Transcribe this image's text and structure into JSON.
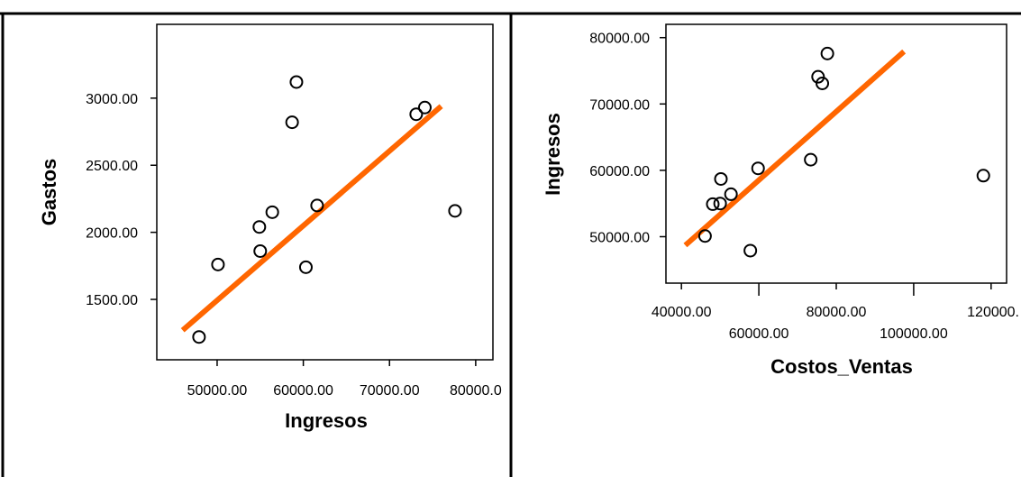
{
  "colors": {
    "fit_line": "#ff6600",
    "marker": "#000000",
    "frame": "#000000"
  },
  "chart_data": [
    {
      "type": "scatter",
      "title": "",
      "xlabel": "Ingresos",
      "ylabel": "Gastos",
      "xlim": [
        43000,
        82000
      ],
      "ylim": [
        1050,
        3550
      ],
      "x_ticks": [
        "50000.00",
        "60000.00",
        "70000.00",
        "80000.0"
      ],
      "y_ticks": [
        "1500.00",
        "2000.00",
        "2500.00",
        "3000.00"
      ],
      "x_tick_values": [
        50000,
        60000,
        70000,
        80000
      ],
      "y_tick_values": [
        1500,
        2000,
        2500,
        3000
      ],
      "grid": false,
      "points": [
        {
          "x": 47900,
          "y": 1220
        },
        {
          "x": 50100,
          "y": 1760
        },
        {
          "x": 54900,
          "y": 2040
        },
        {
          "x": 55000,
          "y": 1860
        },
        {
          "x": 56400,
          "y": 2150
        },
        {
          "x": 58700,
          "y": 2820
        },
        {
          "x": 59200,
          "y": 3120
        },
        {
          "x": 60300,
          "y": 1740
        },
        {
          "x": 61600,
          "y": 2200
        },
        {
          "x": 73100,
          "y": 2880
        },
        {
          "x": 74100,
          "y": 2930
        },
        {
          "x": 77600,
          "y": 2160
        }
      ],
      "fit_line": {
        "x": [
          46000,
          76000
        ],
        "y": [
          1270,
          2940
        ]
      }
    },
    {
      "type": "scatter",
      "title": "",
      "xlabel": "Costos_Ventas",
      "ylabel": "Ingresos",
      "xlim": [
        36000,
        124000
      ],
      "ylim": [
        43000,
        82000
      ],
      "x_ticks": [
        "40000.00",
        "60000.00",
        "80000.00",
        "100000.00",
        "120000."
      ],
      "y_ticks": [
        "50000.00",
        "60000.00",
        "70000.00",
        "80000.00"
      ],
      "x_tick_values": [
        40000,
        60000,
        80000,
        100000,
        120000
      ],
      "y_tick_values": [
        50000,
        60000,
        70000,
        80000
      ],
      "grid": false,
      "points": [
        {
          "x": 46100,
          "y": 50100
        },
        {
          "x": 48100,
          "y": 54900
        },
        {
          "x": 50000,
          "y": 55000
        },
        {
          "x": 50200,
          "y": 58700
        },
        {
          "x": 52800,
          "y": 56400
        },
        {
          "x": 57800,
          "y": 47900
        },
        {
          "x": 59800,
          "y": 60300
        },
        {
          "x": 73400,
          "y": 61600
        },
        {
          "x": 75300,
          "y": 74100
        },
        {
          "x": 76400,
          "y": 73100
        },
        {
          "x": 77700,
          "y": 77600
        },
        {
          "x": 118000,
          "y": 59200
        }
      ],
      "fit_line": {
        "x": [
          41000,
          97500
        ],
        "y": [
          48700,
          77900
        ]
      }
    }
  ]
}
